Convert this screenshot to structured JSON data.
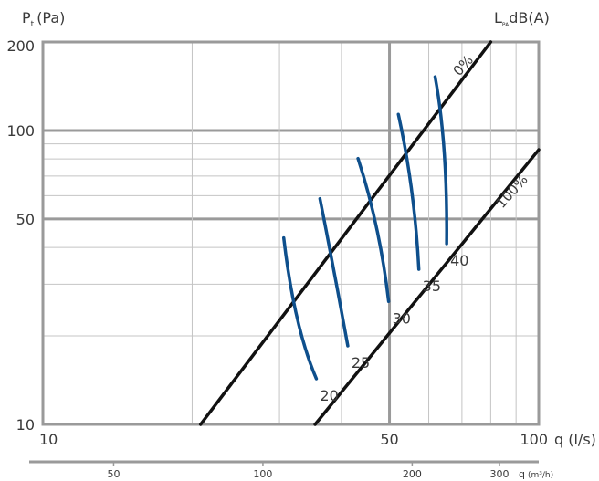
{
  "chart_data": {
    "type": "line",
    "y_axis_label": "P",
    "y_axis_label_sub": "t",
    "y_axis_label_unit": "(Pa)",
    "right_label_main": "L",
    "right_label_sub": "PA",
    "right_label_unit": "dB(A)",
    "x_label": "q (l/s)",
    "x_scale": "log",
    "y_scale": "log",
    "xlim": [
      10,
      100
    ],
    "ylim": [
      10,
      200
    ],
    "x_ticks": [
      {
        "value": 10,
        "label": "10"
      },
      {
        "value": 50,
        "label": "50"
      },
      {
        "value": 100,
        "label": "100"
      }
    ],
    "y_ticks": [
      {
        "value": 10,
        "label": "10"
      },
      {
        "value": 50,
        "label": "50"
      },
      {
        "value": 100,
        "label": "100"
      },
      {
        "value": 200,
        "label": "200"
      }
    ],
    "secondary_axis": {
      "label": "q",
      "unit_label": "(m³/h)",
      "factor": 3.6,
      "ticks": [
        {
          "value": 50,
          "label": "50"
        },
        {
          "value": 100,
          "label": "100"
        },
        {
          "value": 200,
          "label": "200"
        },
        {
          "value": 300,
          "label": "300"
        }
      ]
    },
    "boundary_lines": [
      {
        "label": "0%",
        "points": [
          [
            20.8,
            10
          ],
          [
            80,
            200
          ]
        ]
      },
      {
        "label": "100%",
        "points": [
          [
            35.4,
            10
          ],
          [
            100,
            86
          ]
        ]
      }
    ],
    "series": [
      {
        "name": "20",
        "color": "#0e4f8c",
        "points": [
          [
            35.6,
            14.3
          ],
          [
            32.1,
            21.5
          ],
          [
            30.6,
            43.1
          ]
        ]
      },
      {
        "name": "25",
        "color": "#0e4f8c",
        "points": [
          [
            41.2,
            18.5
          ],
          [
            38.7,
            33.2
          ],
          [
            36.2,
            58.6
          ]
        ]
      },
      {
        "name": "30",
        "color": "#0e4f8c",
        "points": [
          [
            49.8,
            26.2
          ],
          [
            47.8,
            47.5
          ],
          [
            43.2,
            80.3
          ]
        ]
      },
      {
        "name": "35",
        "color": "#0e4f8c",
        "points": [
          [
            57.3,
            33.7
          ],
          [
            56.2,
            63.4
          ],
          [
            52.1,
            113.5
          ]
        ]
      },
      {
        "name": "40",
        "color": "#0e4f8c",
        "points": [
          [
            65.2,
            41.2
          ],
          [
            65.5,
            89.3
          ],
          [
            61.8,
            152.2
          ]
        ]
      }
    ]
  }
}
